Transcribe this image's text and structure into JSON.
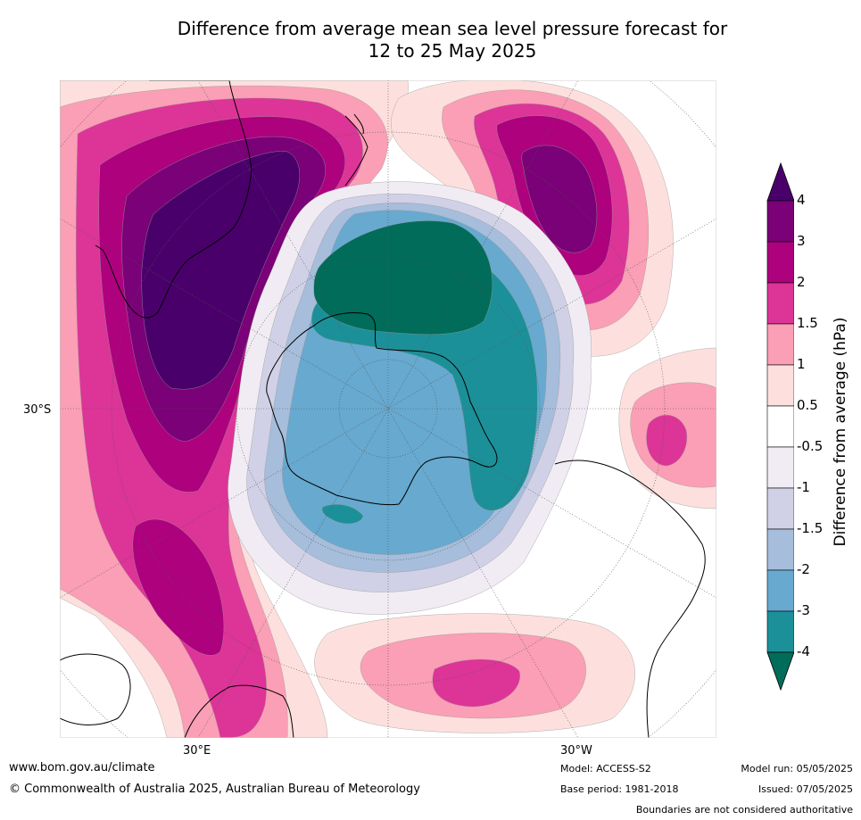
{
  "title": {
    "line1": "Difference from average mean sea level pressure forecast for",
    "line2": "12 to 25 May 2025"
  },
  "map": {
    "projection": "south-polar-stereographic",
    "graticule_labels": {
      "lat_30s": "30°S",
      "lon_30e": "30°E",
      "lon_30w": "30°W"
    },
    "regions": [
      {
        "name": "australia-high-anomaly",
        "level": 4
      },
      {
        "name": "south-pacific-high-anomaly",
        "level": 3
      },
      {
        "name": "south-atlantic-high-anomaly",
        "level": 1.5
      },
      {
        "name": "indian-ocean-high-anomaly",
        "level": 1.5
      },
      {
        "name": "antarctic-low-anomaly",
        "level": -4
      }
    ]
  },
  "colorbar": {
    "title": "Difference from average (hPa)",
    "extend": "both",
    "ticks": [
      "4",
      "3",
      "2",
      "1.5",
      "1",
      "0.5",
      "-0.5",
      "-1",
      "-1.5",
      "-2",
      "-3",
      "-4"
    ],
    "colors": [
      "#4a006b",
      "#7a0177",
      "#ae017e",
      "#dd3497",
      "#fa9fb5",
      "#fde0dd",
      "#ffffff",
      "#f1ecf4",
      "#d0d1e6",
      "#a6bddb",
      "#67a9cf",
      "#1c9099",
      "#016c59"
    ]
  },
  "footer": {
    "website": "www.bom.gov.au/climate",
    "copyright": "© Commonwealth of Australia 2025, Australian Bureau of Meteorology",
    "model": "Model: ACCESS-S2",
    "base_period": "Base period: 1981-2018",
    "model_run": "Model run: 05/05/2025",
    "issued": "Issued: 07/05/2025",
    "disclaimer": "Boundaries are not considered authoritative"
  }
}
